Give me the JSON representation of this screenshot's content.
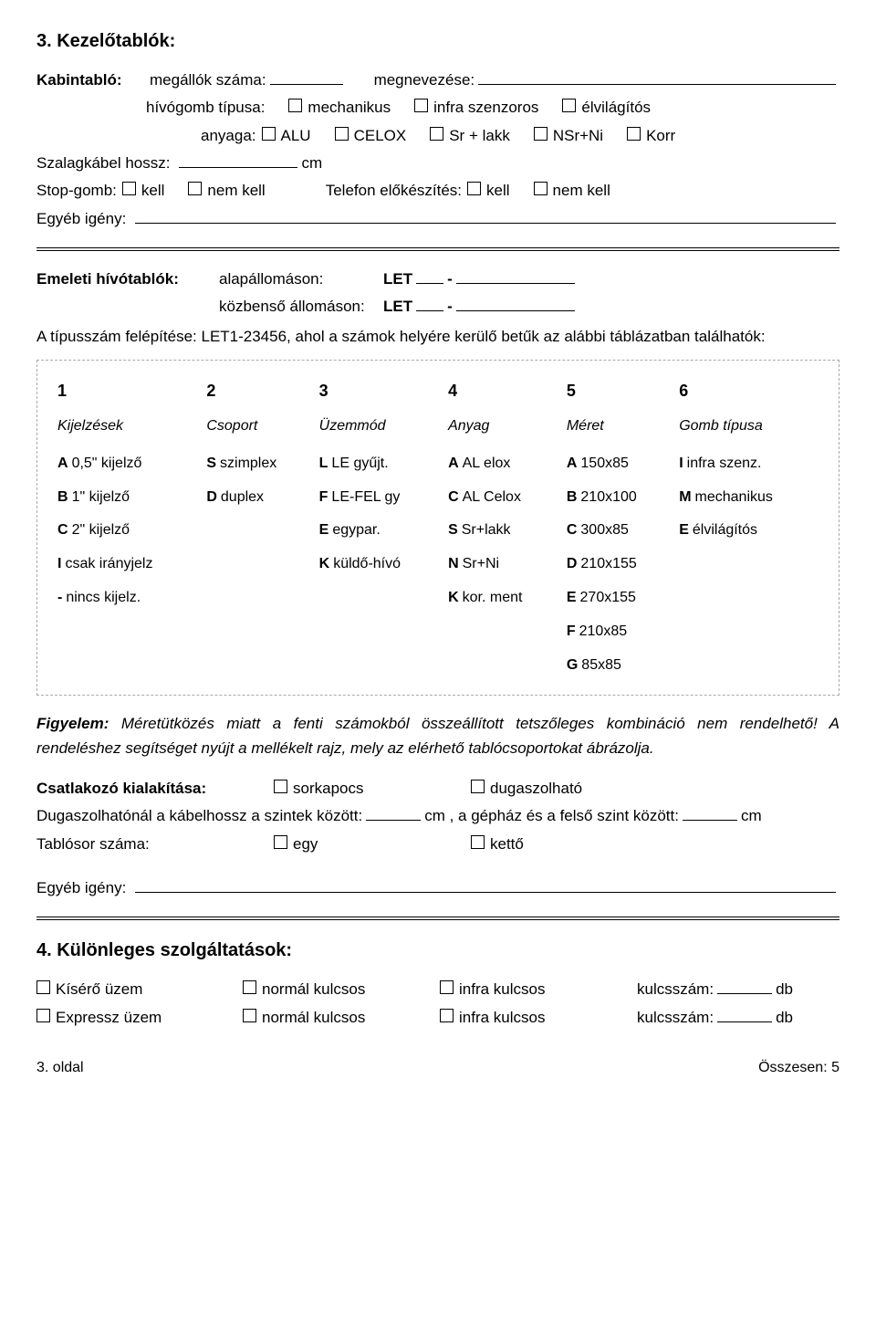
{
  "sec3": {
    "title": "3. Kezelőtablók:",
    "kabin": {
      "label": "Kabintabló:",
      "megallok": "megállók száma:",
      "megnev": "megnevezése:",
      "hivogomb": "hívógomb típusa:",
      "opts1": [
        "mechanikus",
        "infra szenzoros",
        "élvilágítós"
      ],
      "anyaga": "anyaga:",
      "opts2": [
        "ALU",
        "CELOX",
        "Sr + lakk",
        "NSr+Ni",
        "Korr"
      ]
    },
    "szalag": {
      "label": "Szalagkábel hossz:",
      "unit": "cm"
    },
    "stop": {
      "label": "Stop-gomb:",
      "opts": [
        "kell",
        "nem kell"
      ],
      "tel": "Telefon előkészítés:",
      "telopts": [
        "kell",
        "nem kell"
      ]
    },
    "egyeb": "Egyéb igény:"
  },
  "emeleti": {
    "label": "Emeleti hívótablók:",
    "alap": "alapállomáson:",
    "kozb": "közbenső állomáson:",
    "let": "LET",
    "note": "A típusszám felépítése: LET1-23456, ahol a számok helyére kerülő betűk az alábbi táblázatban találhatók:"
  },
  "table": {
    "nums": [
      "1",
      "2",
      "3",
      "4",
      "5",
      "6"
    ],
    "headers": [
      "Kijelzések",
      "Csoport",
      "Üzemmód",
      "Anyag",
      "Méret",
      "Gomb típusa"
    ],
    "rows": [
      [
        [
          "A",
          "0,5\" kijelző"
        ],
        [
          "S",
          "szimplex"
        ],
        [
          "L",
          "LE gyűjt."
        ],
        [
          "A",
          "AL elox"
        ],
        [
          "A",
          "150x85"
        ],
        [
          "I",
          "infra szenz."
        ]
      ],
      [
        [
          "B",
          "1\" kijelző"
        ],
        [
          "D",
          "duplex"
        ],
        [
          "F",
          "LE-FEL gy"
        ],
        [
          "C",
          "AL Celox"
        ],
        [
          "B",
          "210x100"
        ],
        [
          "M",
          "mechanikus"
        ]
      ],
      [
        [
          "C",
          "2\" kijelző"
        ],
        [
          "",
          ""
        ],
        [
          "E",
          "egypar."
        ],
        [
          "S",
          "Sr+lakk"
        ],
        [
          "C",
          "300x85"
        ],
        [
          "E",
          "élvilágítós"
        ]
      ],
      [
        [
          "I",
          "csak irányjelz"
        ],
        [
          "",
          ""
        ],
        [
          "K",
          "küldő-hívó"
        ],
        [
          "N",
          "Sr+Ni"
        ],
        [
          "D",
          "210x155"
        ],
        [
          "",
          ""
        ]
      ],
      [
        [
          "-",
          "nincs kijelz."
        ],
        [
          "",
          ""
        ],
        [
          "",
          ""
        ],
        [
          "K",
          "kor. ment"
        ],
        [
          "E",
          "270x155"
        ],
        [
          "",
          ""
        ]
      ],
      [
        [
          "",
          ""
        ],
        [
          "",
          ""
        ],
        [
          "",
          ""
        ],
        [
          "",
          ""
        ],
        [
          "F",
          "210x85"
        ],
        [
          "",
          ""
        ]
      ],
      [
        [
          "",
          ""
        ],
        [
          "",
          ""
        ],
        [
          "",
          ""
        ],
        [
          "",
          ""
        ],
        [
          "G",
          "85x85"
        ],
        [
          "",
          ""
        ]
      ]
    ]
  },
  "figyelem": {
    "lead": "Figyelem:",
    "text": " Méretütközés miatt a fenti számokból összeállított tetszőleges kombináció nem rendelhető! A rendeléshez segítséget nyújt a mellékelt rajz, mely az elérhető  tablócsoportokat ábrázolja."
  },
  "csatl": {
    "label": "Csatlakozó kialakítása:",
    "opts": [
      "sorkapocs",
      "dugaszolható"
    ],
    "dugasz": "Dugaszolhatónál a kábelhossz a szintek között:",
    "dugasz2": "cm , a gépház és a felső szint között:",
    "unit": "cm",
    "tablosor": "Tablósor száma:",
    "tablosor_opts": [
      "egy",
      "kettő"
    ]
  },
  "sec4": {
    "title": "4. Különleges szolgáltatások:",
    "rows": [
      {
        "label": "Kísérő üzem",
        "o1": "normál kulcsos",
        "o2": "infra kulcsos",
        "k": "kulcsszám:",
        "u": "db"
      },
      {
        "label": "Expressz üzem",
        "o1": "normál kulcsos",
        "o2": "infra kulcsos",
        "k": "kulcsszám:",
        "u": "db"
      }
    ]
  },
  "footer": {
    "left": "3. oldal",
    "right": "Összesen: 5"
  }
}
